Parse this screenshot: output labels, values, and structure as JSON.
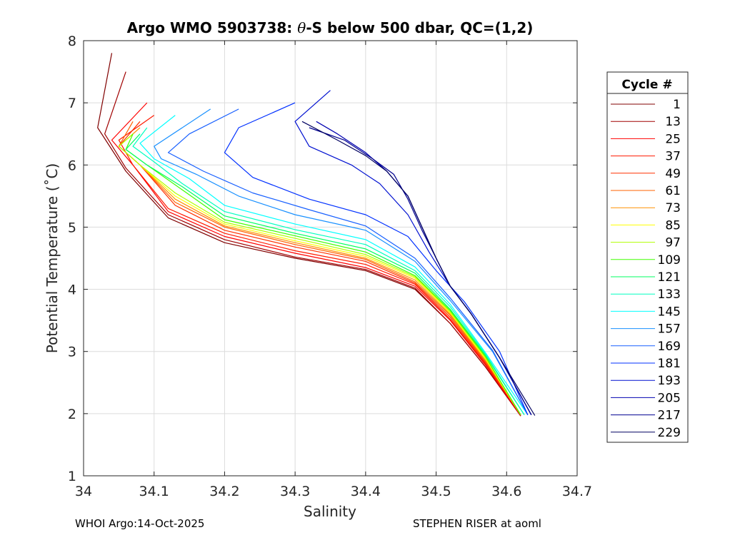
{
  "chart_data": {
    "type": "line",
    "title": "Argo WMO 5903738: θ-S below 500 dbar,  QC=(1,2)",
    "title_parts": {
      "pre": "Argo WMO 5903738: ",
      "theta": "θ",
      "post": "-S below 500 dbar,  QC=(1,2)"
    },
    "xlabel": "Salinity",
    "ylabel": "Potential Temperature (˚C)",
    "xlim": [
      34,
      34.7
    ],
    "ylim": [
      1,
      8
    ],
    "xticks": [
      "34",
      "34.1",
      "34.2",
      "34.3",
      "34.4",
      "34.5",
      "34.6",
      "34.7"
    ],
    "yticks": [
      "1",
      "2",
      "3",
      "4",
      "5",
      "6",
      "7",
      "8"
    ],
    "grid": true,
    "legend_title": "Cycle #",
    "legend_position": "outside-right",
    "series": [
      {
        "name": "1",
        "color": "#800000",
        "s": [
          34.04,
          34.02,
          34.06,
          34.12,
          34.2,
          34.3,
          34.4,
          34.47,
          34.52,
          34.57,
          34.62
        ],
        "t": [
          7.8,
          6.6,
          5.9,
          5.15,
          4.75,
          4.5,
          4.3,
          4.0,
          3.45,
          2.75,
          1.97
        ]
      },
      {
        "name": "13",
        "color": "#a00000",
        "s": [
          34.06,
          34.03,
          34.06,
          34.12,
          34.2,
          34.3,
          34.4,
          34.47,
          34.52,
          34.57,
          34.62
        ],
        "t": [
          7.5,
          6.5,
          5.95,
          5.2,
          4.8,
          4.52,
          4.32,
          4.02,
          3.45,
          2.75,
          1.96
        ]
      },
      {
        "name": "25",
        "color": "#ff0000",
        "s": [
          34.09,
          34.04,
          34.07,
          34.12,
          34.2,
          34.3,
          34.4,
          34.47,
          34.52,
          34.57,
          34.62
        ],
        "t": [
          7.0,
          6.4,
          6.0,
          5.25,
          4.85,
          4.58,
          4.35,
          4.05,
          3.5,
          2.78,
          1.97
        ]
      },
      {
        "name": "37",
        "color": "#ff1a00",
        "s": [
          34.1,
          34.05,
          34.07,
          34.12,
          34.2,
          34.3,
          34.4,
          34.47,
          34.52,
          34.57,
          34.62
        ],
        "t": [
          6.8,
          6.4,
          6.0,
          5.3,
          4.9,
          4.62,
          4.4,
          4.08,
          3.52,
          2.8,
          1.98
        ]
      },
      {
        "name": "49",
        "color": "#ff3000",
        "s": [
          34.08,
          34.05,
          34.08,
          34.13,
          34.2,
          34.3,
          34.4,
          34.47,
          34.52,
          34.57,
          34.62
        ],
        "t": [
          6.7,
          6.3,
          6.0,
          5.35,
          4.95,
          4.68,
          4.45,
          4.1,
          3.55,
          2.82,
          1.98
        ]
      },
      {
        "name": "61",
        "color": "#ff6000",
        "s": [
          34.07,
          34.05,
          34.08,
          34.13,
          34.2,
          34.3,
          34.4,
          34.47,
          34.52,
          34.57,
          34.62
        ],
        "t": [
          6.7,
          6.3,
          6.0,
          5.4,
          5.0,
          4.72,
          4.48,
          4.12,
          3.58,
          2.84,
          1.98
        ]
      },
      {
        "name": "73",
        "color": "#ff9000",
        "s": [
          34.08,
          34.05,
          34.08,
          34.13,
          34.2,
          34.3,
          34.4,
          34.47,
          34.52,
          34.57,
          34.62
        ],
        "t": [
          6.6,
          6.3,
          6.0,
          5.45,
          5.02,
          4.75,
          4.5,
          4.15,
          3.6,
          2.86,
          1.98
        ]
      },
      {
        "name": "85",
        "color": "#ffff00",
        "s": [
          34.07,
          34.05,
          34.08,
          34.13,
          34.2,
          34.3,
          34.4,
          34.47,
          34.52,
          34.57,
          34.62
        ],
        "t": [
          6.5,
          6.3,
          6.0,
          5.5,
          5.05,
          4.78,
          4.53,
          4.18,
          3.62,
          2.88,
          1.98
        ]
      },
      {
        "name": "97",
        "color": "#b0ff00",
        "s": [
          34.07,
          34.05,
          34.08,
          34.13,
          34.2,
          34.3,
          34.4,
          34.47,
          34.52,
          34.57,
          34.62
        ],
        "t": [
          6.5,
          6.3,
          6.0,
          5.55,
          5.08,
          4.82,
          4.56,
          4.2,
          3.64,
          2.9,
          1.98
        ]
      },
      {
        "name": "109",
        "color": "#40ff00",
        "s": [
          34.07,
          34.06,
          34.09,
          34.14,
          34.2,
          34.3,
          34.4,
          34.47,
          34.52,
          34.57,
          34.62
        ],
        "t": [
          6.5,
          6.25,
          6.0,
          5.6,
          5.12,
          4.86,
          4.6,
          4.22,
          3.66,
          2.92,
          1.98
        ]
      },
      {
        "name": "121",
        "color": "#00ff60",
        "s": [
          34.08,
          34.06,
          34.09,
          34.14,
          34.2,
          34.3,
          34.4,
          34.47,
          34.52,
          34.57,
          34.625
        ],
        "t": [
          6.5,
          6.25,
          6.0,
          5.65,
          5.18,
          4.9,
          4.65,
          4.26,
          3.68,
          2.94,
          1.98
        ]
      },
      {
        "name": "133",
        "color": "#00ffc0",
        "s": [
          34.09,
          34.07,
          34.1,
          34.14,
          34.2,
          34.3,
          34.4,
          34.47,
          34.52,
          34.57,
          34.625
        ],
        "t": [
          6.6,
          6.3,
          6.05,
          5.7,
          5.25,
          4.96,
          4.72,
          4.3,
          3.72,
          2.96,
          1.98
        ]
      },
      {
        "name": "145",
        "color": "#00ffff",
        "s": [
          34.13,
          34.08,
          34.1,
          34.15,
          34.2,
          34.3,
          34.4,
          34.47,
          34.52,
          34.57,
          34.63
        ],
        "t": [
          6.8,
          6.35,
          6.1,
          5.78,
          5.35,
          5.05,
          4.8,
          4.36,
          3.76,
          2.98,
          1.98
        ]
      },
      {
        "name": "157",
        "color": "#1890ff",
        "s": [
          34.18,
          34.1,
          34.11,
          34.16,
          34.22,
          34.3,
          34.4,
          34.47,
          34.52,
          34.58,
          34.63
        ],
        "t": [
          6.9,
          6.3,
          6.1,
          5.85,
          5.5,
          5.2,
          4.95,
          4.45,
          3.82,
          3.0,
          1.98
        ]
      },
      {
        "name": "169",
        "color": "#1860ff",
        "s": [
          34.22,
          34.15,
          34.12,
          34.17,
          34.24,
          34.32,
          34.4,
          34.47,
          34.52,
          34.58,
          34.63
        ],
        "t": [
          6.9,
          6.5,
          6.2,
          5.9,
          5.55,
          5.28,
          5.02,
          4.5,
          3.86,
          3.02,
          1.98
        ]
      },
      {
        "name": "181",
        "color": "#0030ff",
        "s": [
          34.3,
          34.22,
          34.2,
          34.24,
          34.32,
          34.4,
          34.46,
          34.5,
          34.54,
          34.59,
          34.63
        ],
        "t": [
          7.0,
          6.6,
          6.2,
          5.8,
          5.45,
          5.2,
          4.85,
          4.3,
          3.8,
          3.0,
          1.98
        ]
      },
      {
        "name": "193",
        "color": "#0010d0",
        "s": [
          34.35,
          34.3,
          34.32,
          34.38,
          34.42,
          34.46,
          34.49,
          34.52,
          34.55,
          34.59,
          34.635
        ],
        "t": [
          7.2,
          6.7,
          6.3,
          6.0,
          5.7,
          5.2,
          4.6,
          4.05,
          3.6,
          2.9,
          1.98
        ]
      },
      {
        "name": "205",
        "color": "#0000b0",
        "s": [
          34.33,
          34.36,
          34.4,
          34.43,
          34.46,
          34.48,
          34.5,
          34.52,
          34.55,
          34.59,
          34.635
        ],
        "t": [
          6.7,
          6.5,
          6.2,
          5.9,
          5.5,
          5.0,
          4.5,
          4.05,
          3.6,
          2.9,
          1.98
        ]
      },
      {
        "name": "217",
        "color": "#000090",
        "s": [
          34.32,
          34.37,
          34.41,
          34.44,
          34.46,
          34.48,
          34.5,
          34.52,
          34.55,
          34.59,
          34.635
        ],
        "t": [
          6.6,
          6.4,
          6.1,
          5.85,
          5.45,
          4.95,
          4.5,
          4.05,
          3.6,
          2.9,
          1.98
        ]
      },
      {
        "name": "229",
        "color": "#000060",
        "s": [
          34.31,
          34.36,
          34.4,
          34.43,
          34.46,
          34.48,
          34.5,
          34.52,
          34.55,
          34.59,
          34.64
        ],
        "t": [
          6.7,
          6.4,
          6.15,
          5.9,
          5.5,
          5.0,
          4.5,
          4.05,
          3.6,
          2.9,
          1.97
        ]
      }
    ]
  },
  "footer": {
    "left": "WHOI Argo:14-Oct-2025",
    "right": "STEPHEN RISER at aoml"
  }
}
